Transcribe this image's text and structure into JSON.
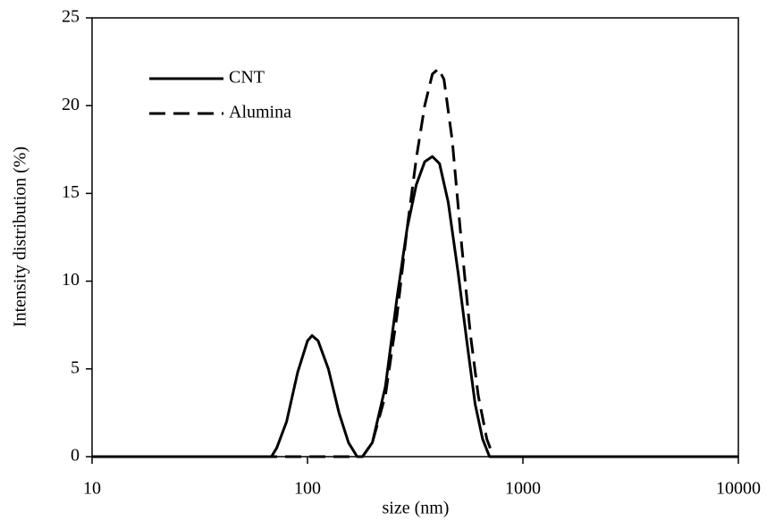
{
  "chart_data": {
    "type": "line",
    "xlabel": "size (nm)",
    "ylabel": "Intensity distribution (%)",
    "xscale": "log",
    "xlim": [
      10,
      10000
    ],
    "xticks": [
      10,
      100,
      1000,
      10000
    ],
    "ylim": [
      0,
      25
    ],
    "yticks": [
      0,
      5,
      10,
      15,
      20,
      25
    ],
    "grid": false,
    "legend": "upper left",
    "series": [
      {
        "name": "CNT",
        "color": "#000000",
        "dash": "solid",
        "x": [
          10,
          68,
          72,
          80,
          90,
          100,
          105,
          112,
          125,
          140,
          155,
          170,
          180,
          200,
          230,
          260,
          290,
          320,
          350,
          380,
          410,
          450,
          500,
          550,
          600,
          650,
          700,
          10000
        ],
        "values": [
          0,
          0,
          0.5,
          2,
          4.8,
          6.6,
          6.9,
          6.6,
          5,
          2.5,
          0.8,
          0,
          0,
          0.8,
          4,
          9,
          13,
          15.5,
          16.8,
          17.1,
          16.7,
          14.5,
          10.5,
          6.5,
          3,
          1,
          0,
          0
        ]
      },
      {
        "name": "Alumina",
        "color": "#000000",
        "dash": "dashed",
        "x": [
          10,
          180,
          200,
          230,
          260,
          290,
          320,
          350,
          380,
          405,
          430,
          470,
          520,
          570,
          620,
          680,
          730,
          10000
        ],
        "values": [
          0,
          0,
          0.8,
          3.5,
          8,
          13,
          17,
          20,
          21.8,
          22.1,
          21.5,
          18,
          12,
          7,
          3.5,
          1,
          0,
          0
        ]
      }
    ]
  }
}
